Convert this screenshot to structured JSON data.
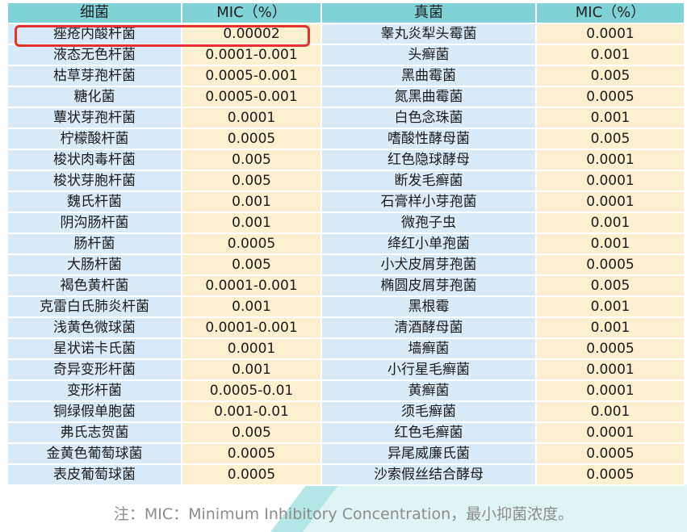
{
  "table": {
    "headers": [
      "细菌",
      "MIC（%）",
      "真菌",
      "MIC（%）"
    ],
    "rows": [
      [
        "痤疮内酸杆菌",
        "0.00002",
        "睾丸炎犁头霉菌",
        "0.0001"
      ],
      [
        "液态无色杆菌",
        "0.0001-0.001",
        "头癣菌",
        "0.001"
      ],
      [
        "枯草芽孢杆菌",
        "0.0005-0.001",
        "黑曲霉菌",
        "0.005"
      ],
      [
        "糖化菌",
        "0.0005-0.001",
        "氮黑曲霉菌",
        "0.0005"
      ],
      [
        "蕈状芽孢杆菌",
        "0.0001",
        "白色念珠菌",
        "0.001"
      ],
      [
        "柠檬酸杆菌",
        "0.0005",
        "嗜酸性酵母菌",
        "0.005"
      ],
      [
        "梭状肉毒杆菌",
        "0.005",
        "红色隐球酵母",
        "0.0001"
      ],
      [
        "梭状芽胞杆菌",
        "0.005",
        "断发毛癣菌",
        "0.0001"
      ],
      [
        "魏氏杆菌",
        "0.001",
        "石膏样小芽孢菌",
        "0.0001"
      ],
      [
        "阴沟肠杆菌",
        "0.001",
        "微孢子虫",
        "0.001"
      ],
      [
        "肠杆菌",
        "0.0005",
        "绛红小单孢菌",
        "0.001"
      ],
      [
        "大肠杆菌",
        "0.005",
        "小犬皮屑芽孢菌",
        "0.0005"
      ],
      [
        "褐色黄杆菌",
        "0.0001-0.001",
        "椭圆皮屑芽孢菌",
        "0.005"
      ],
      [
        "克雷白氏肺炎杆菌",
        "0.001",
        "黑根霉",
        "0.001"
      ],
      [
        "浅黄色微球菌",
        "0.0001-0.001",
        "清酒酵母菌",
        "0.001"
      ],
      [
        "星状诺卡氏菌",
        "0.0001",
        "墙癣菌",
        "0.0005"
      ],
      [
        "奇异变形杆菌",
        "0.001",
        "小行星毛癣菌",
        "0.0001"
      ],
      [
        "变形杆菌",
        "0.0005-0.01",
        "黄癣菌",
        "0.0001"
      ],
      [
        "铜绿假单胞菌",
        "0.001-0.01",
        "须毛癣菌",
        "0.001"
      ],
      [
        "弗氏志贺菌",
        "0.005",
        "红色毛癣菌",
        "0.0001"
      ],
      [
        "金黄色葡萄球菌",
        "0.0005",
        "异尾威廉氏菌",
        "0.0005"
      ],
      [
        "表皮葡萄球菌",
        "0.0005",
        "沙索假丝结合酵母",
        "0.0005"
      ]
    ]
  },
  "note": "注：MIC：Minimum Inhibitory Concentration，最小抑菌浓度。",
  "colors": {
    "header_bg": "#7fd2d5",
    "name_col_bg": "#d9ebf8",
    "value_col_bg": "#fdf0cf",
    "highlight_border": "#e83030",
    "note_text": "#8c8c8c"
  }
}
